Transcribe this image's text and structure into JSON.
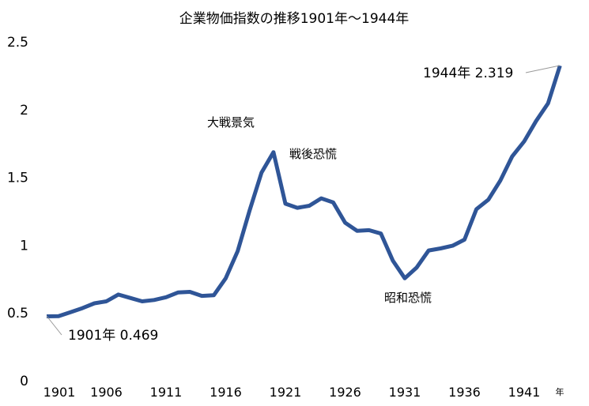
{
  "chart_data": {
    "type": "line",
    "title": "企業物価指数の推移1901年～1944年",
    "xlabel": "年",
    "ylabel": "",
    "ylim": [
      0,
      2.5
    ],
    "yticks": [
      "0",
      "0.5",
      "1",
      "1.5",
      "2",
      "2.5"
    ],
    "ytick_values": [
      0,
      0.5,
      1,
      1.5,
      2,
      2.5
    ],
    "xticks": [
      "1901",
      "1906",
      "1911",
      "1916",
      "1921",
      "1926",
      "1931",
      "1936",
      "1941"
    ],
    "grid": false,
    "series": [
      {
        "name": "企業物価指数",
        "color": "#2f5597",
        "x": [
          1901,
          1902,
          1903,
          1904,
          1905,
          1906,
          1907,
          1908,
          1909,
          1910,
          1911,
          1912,
          1913,
          1914,
          1915,
          1916,
          1917,
          1918,
          1919,
          1920,
          1921,
          1922,
          1923,
          1924,
          1925,
          1926,
          1927,
          1928,
          1929,
          1930,
          1931,
          1932,
          1933,
          1934,
          1935,
          1936,
          1937,
          1938,
          1939,
          1940,
          1941,
          1942,
          1943,
          1944
        ],
        "values": [
          0.469,
          0.47,
          0.5,
          0.53,
          0.565,
          0.58,
          0.63,
          0.605,
          0.58,
          0.59,
          0.61,
          0.645,
          0.65,
          0.62,
          0.625,
          0.75,
          0.95,
          1.25,
          1.53,
          1.68,
          1.3,
          1.27,
          1.285,
          1.34,
          1.31,
          1.16,
          1.1,
          1.105,
          1.08,
          0.88,
          0.75,
          0.83,
          0.955,
          0.97,
          0.99,
          1.035,
          1.26,
          1.33,
          1.47,
          1.65,
          1.76,
          1.91,
          2.04,
          2.319
        ]
      }
    ],
    "annotations": {
      "start": "1901年  0.469",
      "end": "1944年  2.319",
      "boom": "大戦景気",
      "postwar": "戦後恐慌",
      "showa": "昭和恐慌"
    }
  }
}
